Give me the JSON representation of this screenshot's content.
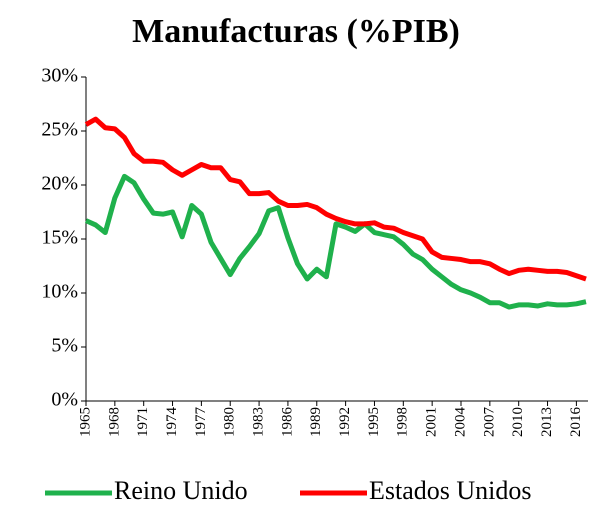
{
  "chart_data": {
    "type": "line",
    "title": "Manufacturas (%PIB)",
    "x": [
      1965,
      1966,
      1967,
      1968,
      1969,
      1970,
      1971,
      1972,
      1973,
      1974,
      1975,
      1976,
      1977,
      1978,
      1979,
      1980,
      1981,
      1982,
      1983,
      1984,
      1985,
      1986,
      1987,
      1988,
      1989,
      1990,
      1991,
      1992,
      1993,
      1994,
      1995,
      1996,
      1997,
      1998,
      1999,
      2000,
      2001,
      2002,
      2003,
      2004,
      2005,
      2006,
      2007,
      2008,
      2009,
      2010,
      2011,
      2012,
      2013,
      2014,
      2015,
      2016,
      2017
    ],
    "series": [
      {
        "name": "Reino Unido",
        "color": "#1fb14c",
        "values": [
          16.7,
          16.3,
          15.6,
          18.8,
          20.8,
          20.2,
          18.7,
          17.4,
          17.3,
          17.5,
          15.2,
          18.1,
          17.3,
          14.7,
          13.2,
          11.7,
          13.2,
          14.3,
          15.5,
          17.6,
          17.9,
          15.1,
          12.7,
          11.3,
          12.2,
          11.5,
          16.4,
          16.1,
          15.7,
          16.4,
          15.6,
          15.4,
          15.2,
          14.5,
          13.6,
          13.1,
          12.2,
          11.5,
          10.8,
          10.3,
          10.0,
          9.6,
          9.1,
          9.1,
          8.7,
          8.9,
          8.9,
          8.8,
          9.0,
          8.9,
          8.9,
          9.0,
          9.2
        ]
      },
      {
        "name": "Estados Unidos",
        "color": "#ff0000",
        "values": [
          25.6,
          26.1,
          25.3,
          25.2,
          24.4,
          22.9,
          22.2,
          22.2,
          22.1,
          21.4,
          20.9,
          21.4,
          21.9,
          21.6,
          21.6,
          20.5,
          20.3,
          19.2,
          19.2,
          19.3,
          18.5,
          18.1,
          18.1,
          18.2,
          17.9,
          17.3,
          16.9,
          16.6,
          16.4,
          16.4,
          16.5,
          16.1,
          16.0,
          15.6,
          15.3,
          15.0,
          13.8,
          13.3,
          13.2,
          13.1,
          12.9,
          12.9,
          12.7,
          12.2,
          11.8,
          12.1,
          12.2,
          12.1,
          12.0,
          12.0,
          11.9,
          11.6,
          11.3
        ]
      }
    ],
    "xlim": [
      1965,
      2017
    ],
    "xticks": [
      1965,
      1968,
      1971,
      1974,
      1977,
      1980,
      1983,
      1986,
      1989,
      1992,
      1995,
      1998,
      2001,
      2004,
      2007,
      2010,
      2013,
      2016
    ],
    "ylim": [
      0,
      30
    ],
    "yticks": [
      {
        "value": 0,
        "label": "0%"
      },
      {
        "value": 5,
        "label": "5%"
      },
      {
        "value": 10,
        "label": "10%"
      },
      {
        "value": 15,
        "label": "15%"
      },
      {
        "value": 20,
        "label": "20%"
      },
      {
        "value": 25,
        "label": "25%"
      },
      {
        "value": 30,
        "label": "30%"
      }
    ],
    "grid": false,
    "legend": "bottom"
  }
}
